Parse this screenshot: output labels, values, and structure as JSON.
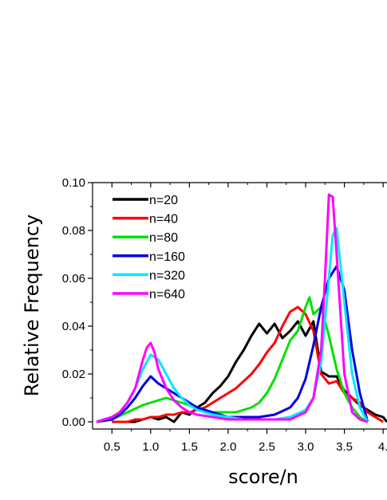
{
  "chart_data": {
    "type": "line",
    "title": "",
    "xlabel": "score/n",
    "ylabel": "Relative Frequency",
    "xlim": [
      0.25,
      4.05
    ],
    "ylim": [
      -0.003,
      0.1
    ],
    "xticks": [
      0.5,
      1.0,
      1.5,
      2.0,
      2.5,
      3.0,
      3.5,
      4.0
    ],
    "xtick_labels": [
      "0.5",
      "1.0",
      "1.5",
      "2.0",
      "2.5",
      "3.0",
      "3.5",
      "4."
    ],
    "yticks": [
      0.0,
      0.02,
      0.04,
      0.06,
      0.08,
      0.1
    ],
    "ytick_labels": [
      "0.00",
      "0.02",
      "0.04",
      "0.06",
      "0.08",
      "0.10"
    ],
    "grid": false,
    "legend_position": "top-left",
    "series": [
      {
        "name": "n=20",
        "color": "#000000",
        "x": [
          0.5,
          0.6,
          0.7,
          0.8,
          0.9,
          1.0,
          1.1,
          1.2,
          1.3,
          1.4,
          1.5,
          1.6,
          1.7,
          1.8,
          1.9,
          2.0,
          2.1,
          2.2,
          2.3,
          2.4,
          2.5,
          2.6,
          2.7,
          2.8,
          2.9,
          3.0,
          3.1,
          3.2,
          3.3,
          3.4,
          3.5,
          3.6,
          3.7,
          3.8,
          3.9,
          4.0,
          4.05
        ],
        "y": [
          0.0,
          0.0,
          0.0,
          0.0,
          0.001,
          0.002,
          0.001,
          0.002,
          0.0,
          0.004,
          0.003,
          0.006,
          0.008,
          0.012,
          0.015,
          0.019,
          0.025,
          0.03,
          0.036,
          0.041,
          0.037,
          0.041,
          0.035,
          0.038,
          0.042,
          0.036,
          0.042,
          0.021,
          0.019,
          0.019,
          0.013,
          0.01,
          0.007,
          0.005,
          0.003,
          0.002,
          0.0
        ]
      },
      {
        "name": "n=40",
        "color": "#ff0000",
        "x": [
          0.5,
          0.6,
          0.7,
          0.8,
          0.9,
          1.0,
          1.1,
          1.2,
          1.3,
          1.4,
          1.5,
          1.6,
          1.7,
          1.8,
          1.9,
          2.0,
          2.1,
          2.2,
          2.3,
          2.4,
          2.5,
          2.6,
          2.7,
          2.8,
          2.9,
          3.0,
          3.1,
          3.2,
          3.3,
          3.4,
          3.5,
          3.6,
          3.7,
          3.8,
          3.9,
          4.0
        ],
        "y": [
          0.0,
          0.0,
          0.0,
          0.001,
          0.001,
          0.002,
          0.002,
          0.003,
          0.003,
          0.004,
          0.004,
          0.005,
          0.006,
          0.008,
          0.01,
          0.012,
          0.014,
          0.017,
          0.02,
          0.024,
          0.029,
          0.033,
          0.04,
          0.046,
          0.048,
          0.045,
          0.038,
          0.02,
          0.016,
          0.017,
          0.012,
          0.01,
          0.008,
          0.004,
          0.002,
          0.0
        ]
      },
      {
        "name": "n=80",
        "color": "#00e000",
        "x": [
          0.3,
          0.5,
          0.7,
          0.9,
          1.0,
          1.1,
          1.2,
          1.3,
          1.4,
          1.5,
          1.6,
          1.7,
          1.8,
          1.9,
          2.0,
          2.1,
          2.2,
          2.3,
          2.4,
          2.5,
          2.6,
          2.7,
          2.8,
          2.9,
          3.0,
          3.05,
          3.1,
          3.2,
          3.3,
          3.4,
          3.5,
          3.6,
          3.7,
          3.8
        ],
        "y": [
          0.0,
          0.001,
          0.004,
          0.007,
          0.008,
          0.009,
          0.01,
          0.009,
          0.008,
          0.007,
          0.006,
          0.005,
          0.004,
          0.004,
          0.004,
          0.004,
          0.005,
          0.006,
          0.008,
          0.012,
          0.018,
          0.026,
          0.034,
          0.038,
          0.048,
          0.052,
          0.045,
          0.048,
          0.036,
          0.022,
          0.012,
          0.006,
          0.002,
          0.0
        ]
      },
      {
        "name": "n=160",
        "color": "#0000e0",
        "x": [
          0.3,
          0.5,
          0.6,
          0.7,
          0.8,
          0.9,
          1.0,
          1.1,
          1.2,
          1.3,
          1.4,
          1.5,
          1.6,
          1.7,
          1.8,
          1.9,
          2.0,
          2.2,
          2.4,
          2.6,
          2.8,
          2.9,
          3.0,
          3.1,
          3.2,
          3.3,
          3.4,
          3.5,
          3.6,
          3.7,
          3.8
        ],
        "y": [
          0.0,
          0.001,
          0.003,
          0.006,
          0.01,
          0.015,
          0.019,
          0.016,
          0.014,
          0.012,
          0.01,
          0.008,
          0.006,
          0.005,
          0.004,
          0.003,
          0.002,
          0.002,
          0.002,
          0.003,
          0.006,
          0.01,
          0.018,
          0.032,
          0.048,
          0.06,
          0.065,
          0.055,
          0.03,
          0.012,
          0.0
        ]
      },
      {
        "name": "n=320",
        "color": "#00e8ff",
        "x": [
          0.3,
          0.5,
          0.6,
          0.7,
          0.8,
          0.9,
          1.0,
          1.1,
          1.2,
          1.3,
          1.4,
          1.5,
          1.6,
          1.8,
          2.0,
          2.2,
          2.4,
          2.6,
          2.8,
          3.0,
          3.1,
          3.2,
          3.3,
          3.35,
          3.4,
          3.5,
          3.6,
          3.7,
          3.8
        ],
        "y": [
          0.0,
          0.002,
          0.004,
          0.008,
          0.014,
          0.022,
          0.028,
          0.026,
          0.02,
          0.014,
          0.01,
          0.007,
          0.005,
          0.003,
          0.002,
          0.001,
          0.001,
          0.001,
          0.002,
          0.005,
          0.01,
          0.025,
          0.06,
          0.078,
          0.081,
          0.05,
          0.02,
          0.006,
          0.0
        ]
      },
      {
        "name": "n=640",
        "color": "#ff00ff",
        "x": [
          0.3,
          0.5,
          0.6,
          0.7,
          0.8,
          0.9,
          0.95,
          1.0,
          1.05,
          1.1,
          1.2,
          1.3,
          1.4,
          1.5,
          1.6,
          1.8,
          2.0,
          2.2,
          2.4,
          2.6,
          2.8,
          3.0,
          3.1,
          3.2,
          3.25,
          3.3,
          3.35,
          3.4,
          3.5,
          3.6,
          3.7,
          3.8
        ],
        "y": [
          0.0,
          0.002,
          0.004,
          0.008,
          0.014,
          0.026,
          0.031,
          0.033,
          0.029,
          0.022,
          0.014,
          0.009,
          0.006,
          0.004,
          0.003,
          0.002,
          0.001,
          0.001,
          0.001,
          0.001,
          0.001,
          0.004,
          0.01,
          0.03,
          0.06,
          0.095,
          0.094,
          0.07,
          0.02,
          0.004,
          0.001,
          0.0
        ]
      }
    ]
  }
}
